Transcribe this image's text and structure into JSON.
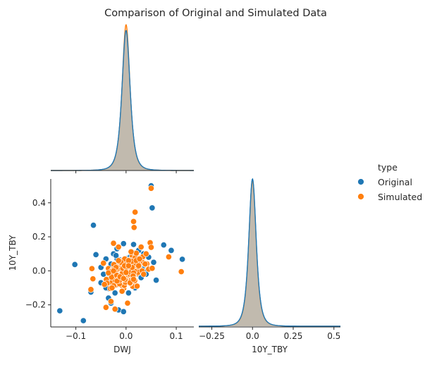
{
  "figure": {
    "title": "Comparison of Original and Simulated Data"
  },
  "colors": {
    "original": "#1f77b4",
    "simulated": "#ff7f0e",
    "overlap_fill": "#b0b0a8",
    "axis": "#262626"
  },
  "legend": {
    "title": "type",
    "entries": [
      {
        "label": "Original",
        "color": "#1f77b4"
      },
      {
        "label": "Simulated",
        "color": "#ff7f0e"
      }
    ]
  },
  "chart_data": [
    {
      "type": "area",
      "panel": "DWJ density (top-left)",
      "x_variable": "DWJ",
      "xlim": [
        -0.15,
        0.135
      ],
      "xticks": [
        -0.1,
        0.0,
        0.1
      ],
      "series": [
        {
          "name": "Original",
          "center": 0.0,
          "scale": 0.0085,
          "peak_relative": 0.96
        },
        {
          "name": "Simulated",
          "center": 0.0,
          "scale": 0.0082,
          "peak_relative": 1.0
        }
      ]
    },
    {
      "type": "scatter",
      "panel": "DWJ vs 10Y_TBY (bottom-left)",
      "xlabel": "DWJ",
      "ylabel": "10Y_TBY",
      "xlim": [
        -0.15,
        0.135
      ],
      "ylim": [
        -0.33,
        0.54
      ],
      "xticks": [
        -0.1,
        0.0,
        0.1
      ],
      "yticks": [
        -0.2,
        0.0,
        0.2,
        0.4
      ],
      "series": [
        {
          "name": "Original",
          "points": [
            [
              -0.132,
              -0.235
            ],
            [
              -0.085,
              -0.293
            ],
            [
              -0.102,
              0.037
            ],
            [
              -0.065,
              0.268
            ],
            [
              -0.06,
              0.095
            ],
            [
              -0.07,
              -0.125
            ],
            [
              -0.05,
              -0.07
            ],
            [
              -0.05,
              0.02
            ],
            [
              -0.045,
              -0.02
            ],
            [
              -0.04,
              0.07
            ],
            [
              -0.04,
              -0.1
            ],
            [
              -0.035,
              -0.16
            ],
            [
              -0.03,
              -0.19
            ],
            [
              -0.03,
              0.04
            ],
            [
              -0.028,
              -0.05
            ],
            [
              -0.025,
              0.1
            ],
            [
              -0.022,
              -0.13
            ],
            [
              -0.02,
              0.09
            ],
            [
              -0.02,
              -0.03
            ],
            [
              -0.018,
              0.13
            ],
            [
              -0.015,
              -0.23
            ],
            [
              -0.015,
              0.0
            ],
            [
              -0.01,
              -0.08
            ],
            [
              -0.008,
              0.06
            ],
            [
              -0.005,
              -0.24
            ],
            [
              -0.005,
              0.16
            ],
            [
              0.0,
              -0.015
            ],
            [
              0.003,
              0.02
            ],
            [
              0.005,
              -0.13
            ],
            [
              0.008,
              0.08
            ],
            [
              0.01,
              -0.05
            ],
            [
              0.012,
              0.11
            ],
            [
              0.015,
              0.02
            ],
            [
              0.018,
              -0.1
            ],
            [
              0.02,
              0.05
            ],
            [
              0.02,
              -0.02
            ],
            [
              0.025,
              0.12
            ],
            [
              0.028,
              0.07
            ],
            [
              0.03,
              -0.04
            ],
            [
              0.032,
              0.01
            ],
            [
              0.035,
              0.1
            ],
            [
              0.04,
              -0.02
            ],
            [
              0.045,
              0.08
            ],
            [
              0.05,
              0.5
            ],
            [
              0.052,
              0.37
            ],
            [
              0.055,
              0.05
            ],
            [
              0.06,
              -0.055
            ],
            [
              0.075,
              0.152
            ],
            [
              0.09,
              0.12
            ],
            [
              0.112,
              0.068
            ],
            [
              0.015,
              0.155
            ],
            [
              -0.012,
              0.03
            ],
            [
              -0.03,
              -0.01
            ],
            [
              0.0,
              0.045
            ],
            [
              0.01,
              -0.025
            ]
          ]
        },
        {
          "name": "Simulated",
          "points": [
            [
              -0.07,
              -0.11
            ],
            [
              -0.068,
              0.013
            ],
            [
              -0.066,
              -0.047
            ],
            [
              -0.045,
              0.045
            ],
            [
              -0.043,
              -0.08
            ],
            [
              -0.04,
              -0.215
            ],
            [
              -0.035,
              -0.012
            ],
            [
              -0.03,
              -0.18
            ],
            [
              -0.028,
              -0.1
            ],
            [
              -0.025,
              0.162
            ],
            [
              -0.022,
              -0.225
            ],
            [
              -0.02,
              0.02
            ],
            [
              -0.018,
              -0.06
            ],
            [
              -0.015,
              0.14
            ],
            [
              -0.012,
              -0.035
            ],
            [
              -0.01,
              0.05
            ],
            [
              -0.008,
              -0.12
            ],
            [
              -0.005,
              -0.045
            ],
            [
              -0.003,
              0.03
            ],
            [
              0.0,
              -0.01
            ],
            [
              0.003,
              -0.19
            ],
            [
              0.005,
              0.06
            ],
            [
              0.008,
              -0.07
            ],
            [
              0.01,
              0.112
            ],
            [
              0.012,
              0.02
            ],
            [
              0.014,
              -0.03
            ],
            [
              0.015,
              0.29
            ],
            [
              0.016,
              0.255
            ],
            [
              0.018,
              0.345
            ],
            [
              0.02,
              0.06
            ],
            [
              0.022,
              -0.09
            ],
            [
              0.025,
              0.03
            ],
            [
              0.027,
              0.07
            ],
            [
              0.03,
              0.14
            ],
            [
              0.032,
              0.0
            ],
            [
              0.035,
              -0.02
            ],
            [
              0.038,
              0.04
            ],
            [
              0.04,
              0.1
            ],
            [
              0.045,
              0.01
            ],
            [
              0.048,
              0.165
            ],
            [
              0.05,
              0.485
            ],
            [
              0.05,
              0.138
            ],
            [
              0.052,
              0.015
            ],
            [
              0.085,
              0.082
            ],
            [
              0.11,
              -0.005
            ],
            [
              -0.015,
              0.06
            ],
            [
              0.005,
              0.03
            ],
            [
              -0.025,
              0.0
            ],
            [
              0.015,
              -0.05
            ]
          ]
        }
      ]
    },
    {
      "type": "area",
      "panel": "10Y_TBY density (bottom-right)",
      "x_variable": "10Y_TBY",
      "xlabel": "10Y_TBY",
      "xlim": [
        -0.33,
        0.54
      ],
      "xticks": [
        -0.25,
        0.0,
        0.25,
        0.5
      ],
      "series": [
        {
          "name": "Original",
          "center": 0.0,
          "scale": 0.024,
          "peak_relative": 1.0
        },
        {
          "name": "Simulated",
          "center": 0.0,
          "scale": 0.0235,
          "peak_relative": 0.98
        }
      ]
    }
  ]
}
